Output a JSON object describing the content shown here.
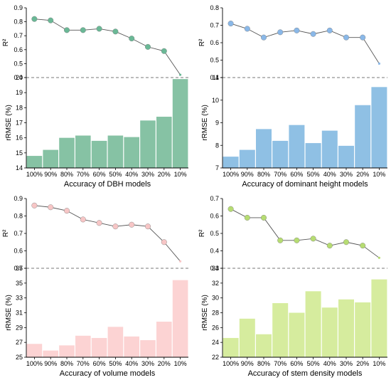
{
  "chart_data": [
    {
      "type": "line+bar",
      "xlabel": "Accuracy of DBH models",
      "categories": [
        "100%",
        "90%",
        "80%",
        "70%",
        "60%",
        "50%",
        "40%",
        "30%",
        "20%",
        "10%"
      ],
      "r2": {
        "ylabel": "R²",
        "ylim": [
          0.4,
          0.9
        ],
        "yticks": [
          "0.4",
          "0.5",
          "0.6",
          "0.7",
          "0.8",
          "0.9"
        ],
        "values": [
          0.82,
          0.81,
          0.74,
          0.74,
          0.75,
          0.73,
          0.68,
          0.62,
          0.59,
          0.42
        ]
      },
      "rmse": {
        "ylabel": "rRMSE (%)",
        "ylim": [
          14,
          20
        ],
        "yticks": [
          "14",
          "15",
          "16",
          "17",
          "18",
          "19",
          "20"
        ],
        "values": [
          14.8,
          15.2,
          16.0,
          16.15,
          15.8,
          16.15,
          16.05,
          17.15,
          17.4,
          19.9
        ]
      },
      "color": "#86c2a4",
      "marker_color": "#6ab896"
    },
    {
      "type": "line+bar",
      "xlabel": "Accuracy of dominant height models",
      "categories": [
        "100%",
        "90%",
        "80%",
        "70%",
        "60%",
        "50%",
        "40%",
        "30%",
        "20%",
        "10%"
      ],
      "r2": {
        "ylabel": "R²",
        "ylim": [
          0.4,
          0.8
        ],
        "yticks": [
          "0.4",
          "0.5",
          "0.6",
          "0.7",
          "0.8"
        ],
        "values": [
          0.71,
          0.68,
          0.63,
          0.66,
          0.67,
          0.65,
          0.67,
          0.63,
          0.63,
          0.48
        ]
      },
      "rmse": {
        "ylabel": "rRMSE (%)",
        "ylim": [
          7,
          11
        ],
        "yticks": [
          "7",
          "8",
          "9",
          "10",
          "11"
        ],
        "values": [
          7.5,
          7.8,
          8.72,
          8.2,
          8.9,
          8.1,
          8.65,
          7.98,
          9.78,
          10.58
        ]
      },
      "color": "#8fc0e4",
      "marker_color": "#8ab8e8"
    },
    {
      "type": "line+bar",
      "xlabel": "Accuracy of volume models",
      "categories": [
        "100%",
        "90%",
        "80%",
        "70%",
        "60%",
        "50%",
        "40%",
        "30%",
        "20%",
        "10%"
      ],
      "r2": {
        "ylabel": "R²",
        "ylim": [
          0.5,
          0.9
        ],
        "yticks": [
          "0.5",
          "0.6",
          "0.7",
          "0.8",
          "0.9"
        ],
        "values": [
          0.86,
          0.85,
          0.83,
          0.78,
          0.76,
          0.74,
          0.75,
          0.74,
          0.65,
          0.54
        ]
      },
      "rmse": {
        "ylabel": "rRMSE (%)",
        "ylim": [
          25,
          37
        ],
        "yticks": [
          "25",
          "27",
          "29",
          "31",
          "33",
          "35",
          "37"
        ],
        "values": [
          26.8,
          25.9,
          26.6,
          27.9,
          27.6,
          29.1,
          27.8,
          27.3,
          29.8,
          35.4
        ]
      },
      "color": "#fcd3d3",
      "marker_color": "#f7c6c6"
    },
    {
      "type": "line+bar",
      "xlabel": "Accuracy of stem density models",
      "categories": [
        "100%",
        "90%",
        "80%",
        "70%",
        "60%",
        "50%",
        "40%",
        "30%",
        "20%",
        "10%"
      ],
      "r2": {
        "ylabel": "R²",
        "ylim": [
          0.3,
          0.7
        ],
        "yticks": [
          "0.3",
          "0.4",
          "0.5",
          "0.6",
          "0.7"
        ],
        "values": [
          0.64,
          0.59,
          0.59,
          0.46,
          0.46,
          0.47,
          0.43,
          0.45,
          0.43,
          0.36
        ]
      },
      "rmse": {
        "ylabel": "rRMSE (%)",
        "ylim": [
          22,
          34
        ],
        "yticks": [
          "22",
          "24",
          "26",
          "28",
          "30",
          "32",
          "34"
        ],
        "values": [
          24.6,
          27.2,
          25.1,
          29.3,
          28.0,
          30.9,
          28.7,
          29.8,
          29.4,
          32.5
        ]
      },
      "color": "#d6ec9e",
      "marker_color": "#b6dc72"
    }
  ]
}
